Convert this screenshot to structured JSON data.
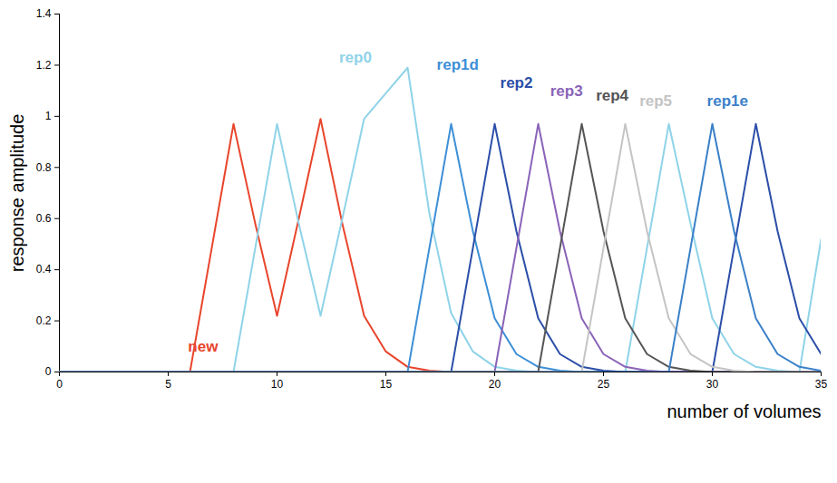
{
  "chart_data": {
    "type": "line",
    "xlabel": "number of volumes",
    "ylabel": "response amplitude",
    "x": [
      0,
      1,
      2,
      3,
      4,
      5,
      6,
      7,
      8,
      9,
      10,
      11,
      12,
      13,
      14,
      15,
      16,
      17,
      18,
      19,
      20,
      21,
      22,
      23,
      24,
      25,
      26,
      27,
      28,
      29,
      30,
      31,
      32,
      33,
      34,
      35
    ],
    "xlim": [
      0,
      35
    ],
    "xticks": [
      0,
      5,
      10,
      15,
      20,
      25,
      30,
      35
    ],
    "ylim": [
      0,
      1.4
    ],
    "yticks": [
      0,
      0.2,
      0.4,
      0.6,
      0.8,
      1,
      1.2,
      1.4
    ],
    "grid": false,
    "series": [
      {
        "name": "new",
        "color": "#e8452c",
        "values": [
          0,
          0,
          0,
          0,
          0,
          0,
          0,
          0.485,
          0.97,
          0.58,
          0.22,
          0.6,
          0.99,
          0.58,
          0.22,
          0.08,
          0.02,
          0.005,
          0,
          0,
          0,
          0,
          0,
          0,
          0,
          0,
          0,
          0,
          0,
          0,
          0,
          0,
          0,
          0,
          0,
          0
        ]
      },
      {
        "name": "rep0",
        "color": "#8fd3e8",
        "values": [
          0,
          0,
          0,
          0,
          0,
          0,
          0,
          0,
          0,
          0.485,
          0.97,
          0.58,
          0.22,
          0.6,
          0.99,
          1.09,
          1.19,
          0.62,
          0.23,
          0.08,
          0.02,
          0.005,
          0,
          0,
          0,
          0,
          0,
          0.485,
          0.97,
          0.58,
          0.21,
          0.07,
          0.02,
          0.005,
          0,
          0.52
        ]
      },
      {
        "name": "rep1d",
        "color": "#3d8fd6",
        "values": [
          0,
          0,
          0,
          0,
          0,
          0,
          0,
          0,
          0,
          0,
          0,
          0,
          0,
          0,
          0,
          0,
          0,
          0.485,
          0.97,
          0.55,
          0.21,
          0.07,
          0.02,
          0.005,
          0,
          0,
          0,
          0,
          0,
          0,
          0,
          0,
          0,
          0,
          0,
          0
        ]
      },
      {
        "name": "rep2",
        "color": "#2b4ea8",
        "values": [
          0,
          0,
          0,
          0,
          0,
          0,
          0,
          0,
          0,
          0,
          0,
          0,
          0,
          0,
          0,
          0,
          0,
          0,
          0,
          0.485,
          0.97,
          0.55,
          0.21,
          0.07,
          0.02,
          0.005,
          0,
          0,
          0,
          0,
          0,
          0.485,
          0.97,
          0.55,
          0.21,
          0.07
        ]
      },
      {
        "name": "rep3",
        "color": "#8a63b8",
        "values": [
          0,
          0,
          0,
          0,
          0,
          0,
          0,
          0,
          0,
          0,
          0,
          0,
          0,
          0,
          0,
          0,
          0,
          0,
          0,
          0,
          0,
          0.485,
          0.97,
          0.55,
          0.21,
          0.07,
          0.02,
          0.005,
          0,
          0,
          0,
          0,
          0,
          0,
          0,
          0
        ]
      },
      {
        "name": "rep4",
        "color": "#555555",
        "values": [
          0,
          0,
          0,
          0,
          0,
          0,
          0,
          0,
          0,
          0,
          0,
          0,
          0,
          0,
          0,
          0,
          0,
          0,
          0,
          0,
          0,
          0,
          0,
          0.485,
          0.97,
          0.55,
          0.21,
          0.07,
          0.02,
          0.005,
          0,
          0,
          0,
          0,
          0,
          0
        ]
      },
      {
        "name": "rep5",
        "color": "#c4c4c4",
        "values": [
          0,
          0,
          0,
          0,
          0,
          0,
          0,
          0,
          0,
          0,
          0,
          0,
          0,
          0,
          0,
          0,
          0,
          0,
          0,
          0,
          0,
          0,
          0,
          0,
          0,
          0.485,
          0.97,
          0.55,
          0.21,
          0.07,
          0.02,
          0.005,
          0,
          0,
          0,
          0
        ]
      },
      {
        "name": "rep1e",
        "color": "#3a80c8",
        "values": [
          0,
          0,
          0,
          0,
          0,
          0,
          0,
          0,
          0,
          0,
          0,
          0,
          0,
          0,
          0,
          0,
          0,
          0,
          0,
          0,
          0,
          0,
          0,
          0,
          0,
          0,
          0,
          0,
          0,
          0.485,
          0.97,
          0.55,
          0.21,
          0.07,
          0.02,
          0.005
        ]
      }
    ]
  }
}
